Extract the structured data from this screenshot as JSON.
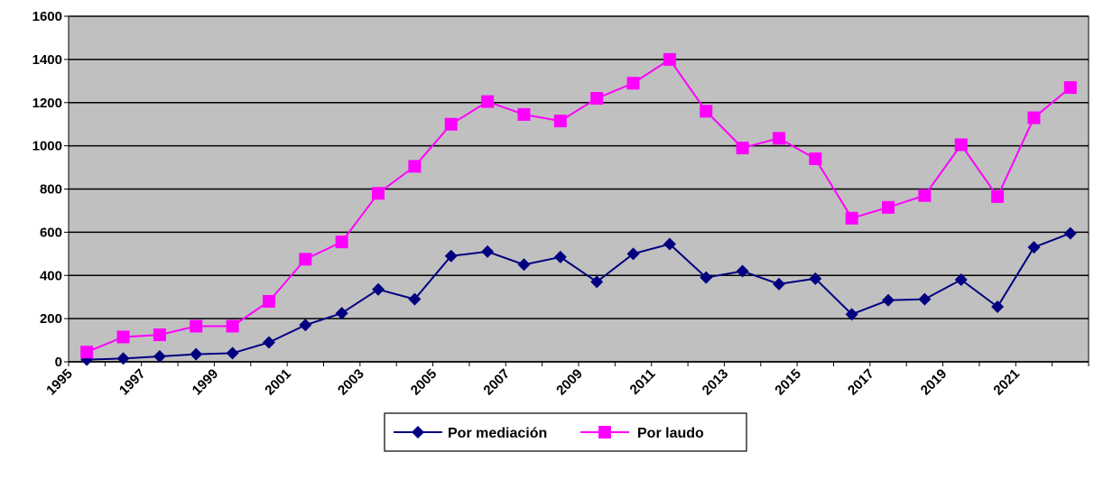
{
  "chart_data": {
    "type": "line",
    "title": "",
    "xlabel": "",
    "ylabel": "",
    "ylim": [
      0,
      1600
    ],
    "yticks": [
      0,
      200,
      400,
      600,
      800,
      1000,
      1200,
      1400,
      1600
    ],
    "xtick_labels": [
      "1995",
      "1997",
      "1999",
      "2001",
      "2003",
      "2005",
      "2007",
      "2009",
      "2011",
      "2013",
      "2015",
      "2017",
      "2019",
      "2021"
    ],
    "x": [
      1995,
      1996,
      1997,
      1998,
      1999,
      2000,
      2001,
      2002,
      2003,
      2004,
      2005,
      2006,
      2007,
      2008,
      2009,
      2010,
      2011,
      2012,
      2013,
      2014,
      2015,
      2016,
      2017,
      2018,
      2019,
      2020,
      2021,
      2022
    ],
    "grid": true,
    "legend_position": "bottom",
    "colors": {
      "plot_background": "#c0c0c0",
      "mediacion": "#000080",
      "laudo": "#ff00ff"
    },
    "series": [
      {
        "name": "Por mediación",
        "marker": "diamond",
        "values": [
          10,
          15,
          25,
          35,
          40,
          90,
          170,
          225,
          335,
          290,
          490,
          510,
          450,
          485,
          370,
          500,
          545,
          390,
          420,
          360,
          385,
          220,
          285,
          290,
          380,
          255,
          530,
          595
        ]
      },
      {
        "name": "Por laudo",
        "marker": "square",
        "values": [
          45,
          115,
          125,
          165,
          165,
          280,
          475,
          555,
          780,
          905,
          1100,
          1205,
          1145,
          1115,
          1220,
          1290,
          1400,
          1160,
          990,
          1035,
          940,
          665,
          715,
          770,
          1005,
          765,
          1130,
          1270
        ]
      }
    ]
  }
}
